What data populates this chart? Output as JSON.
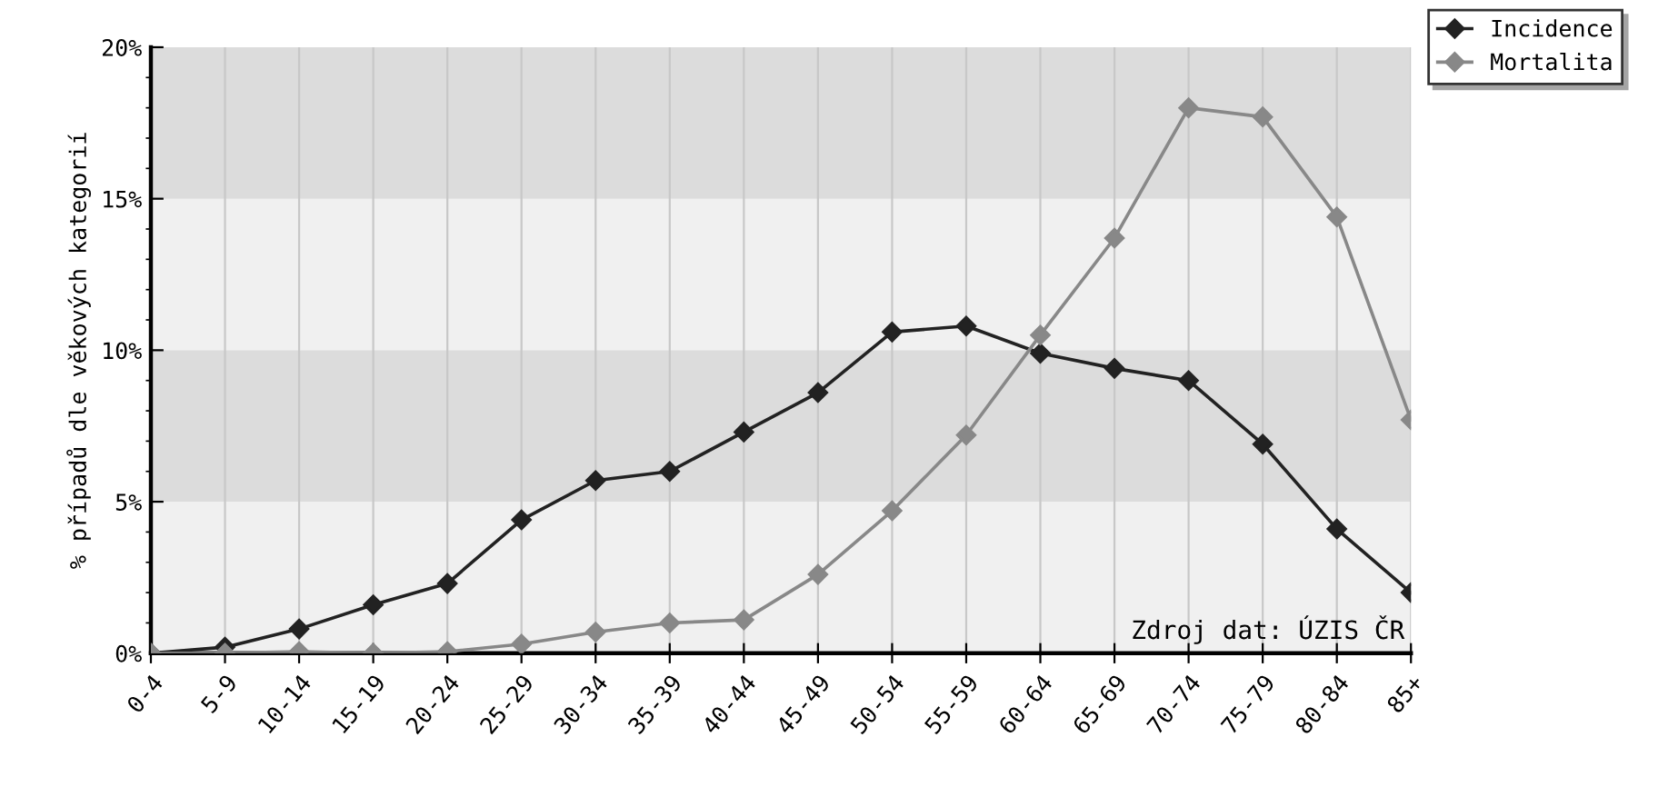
{
  "chart_data": {
    "type": "line",
    "ylabel": "% případů dle věkových kategorií",
    "categories": [
      "0-4",
      "5-9",
      "10-14",
      "15-19",
      "20-24",
      "25-29",
      "30-34",
      "35-39",
      "40-44",
      "45-49",
      "50-54",
      "55-59",
      "60-64",
      "65-69",
      "70-74",
      "75-79",
      "80-84",
      "85+"
    ],
    "series": [
      {
        "name": "Incidence",
        "color": "#222222",
        "values": [
          0.0,
          0.2,
          0.8,
          1.6,
          2.3,
          4.4,
          5.7,
          6.0,
          7.3,
          8.6,
          10.6,
          10.8,
          9.9,
          9.4,
          9.0,
          6.9,
          4.1,
          2.0
        ]
      },
      {
        "name": "Mortalita",
        "color": "#888888",
        "values": [
          0.0,
          0.0,
          0.05,
          0.0,
          0.05,
          0.3,
          0.7,
          1.0,
          1.1,
          2.6,
          4.7,
          7.2,
          10.5,
          13.7,
          18.0,
          17.7,
          14.4,
          7.7
        ]
      }
    ],
    "ylim": [
      0,
      20
    ],
    "yticks": [
      {
        "value": 0,
        "label": "0%"
      },
      {
        "value": 5,
        "label": "5%"
      },
      {
        "value": 10,
        "label": "10%"
      },
      {
        "value": 15,
        "label": "15%"
      },
      {
        "value": 20,
        "label": "20%"
      }
    ],
    "bands": [
      {
        "axis": "y",
        "from": 0,
        "to": 5,
        "color": "#f0f0f0"
      },
      {
        "axis": "y",
        "from": 5,
        "to": 10,
        "color": "#dcdcdc"
      },
      {
        "axis": "y",
        "from": 10,
        "to": 15,
        "color": "#f0f0f0"
      },
      {
        "axis": "y",
        "from": 15,
        "to": 20,
        "color": "#dcdcdc"
      }
    ],
    "annotations": [
      {
        "text": "Zdroj dat: ÚZIS ČR"
      }
    ],
    "grid": "x",
    "legend": "top right",
    "marker": "diamond",
    "line_style": "solid"
  }
}
